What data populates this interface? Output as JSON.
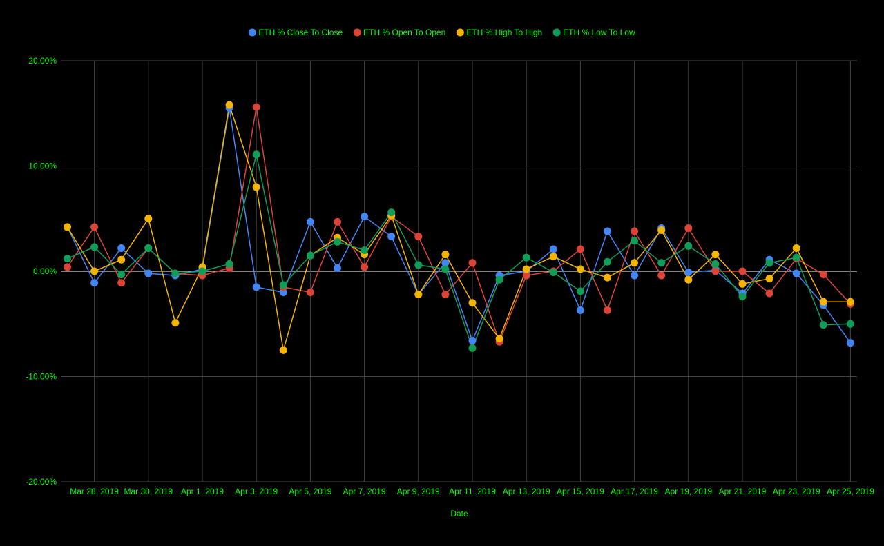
{
  "colors": {
    "background": "#000000",
    "grid": "#444444",
    "zero_line": "#ffffff",
    "text": "#00ff00"
  },
  "chart_data": {
    "type": "line",
    "title": "",
    "xlabel": "Date",
    "ylabel": "",
    "ylim": [
      -0.2,
      0.2
    ],
    "y_ticks": [
      {
        "value": 0.2,
        "label": "20.00%"
      },
      {
        "value": 0.1,
        "label": "10.00%"
      },
      {
        "value": 0.0,
        "label": "0.00%"
      },
      {
        "value": -0.1,
        "label": "-10.00%"
      },
      {
        "value": -0.2,
        "label": "-20.00%"
      }
    ],
    "x": [
      "Mar 27, 2019",
      "Mar 28, 2019",
      "Mar 29, 2019",
      "Mar 30, 2019",
      "Mar 31, 2019",
      "Apr 1, 2019",
      "Apr 2, 2019",
      "Apr 3, 2019",
      "Apr 4, 2019",
      "Apr 5, 2019",
      "Apr 6, 2019",
      "Apr 7, 2019",
      "Apr 8, 2019",
      "Apr 9, 2019",
      "Apr 10, 2019",
      "Apr 11, 2019",
      "Apr 12, 2019",
      "Apr 13, 2019",
      "Apr 14, 2019",
      "Apr 15, 2019",
      "Apr 16, 2019",
      "Apr 17, 2019",
      "Apr 18, 2019",
      "Apr 19, 2019",
      "Apr 20, 2019",
      "Apr 21, 2019",
      "Apr 22, 2019",
      "Apr 23, 2019",
      "Apr 24, 2019",
      "Apr 25, 2019"
    ],
    "x_tick_labels": [
      "Mar 28, 2019",
      "Mar 30, 2019",
      "Apr 1, 2019",
      "Apr 3, 2019",
      "Apr 5, 2019",
      "Apr 7, 2019",
      "Apr 9, 2019",
      "Apr 11, 2019",
      "Apr 13, 2019",
      "Apr 15, 2019",
      "Apr 17, 2019",
      "Apr 19, 2019",
      "Apr 21, 2019",
      "Apr 23, 2019",
      "Apr 25, 2019"
    ],
    "legend_position": "top",
    "grid": true,
    "series": [
      {
        "name": "ETH % Close To Close",
        "color": "#4285f4",
        "values": [
          0.042,
          -0.011,
          0.022,
          -0.002,
          -0.004,
          0.002,
          0.155,
          -0.015,
          -0.02,
          0.047,
          0.003,
          0.052,
          0.033,
          -0.022,
          0.008,
          -0.066,
          -0.004,
          0.0,
          0.021,
          -0.037,
          0.038,
          -0.004,
          0.041,
          -0.001,
          0.001,
          -0.021,
          0.011,
          -0.002,
          -0.032,
          -0.068
        ]
      },
      {
        "name": "ETH % Open To Open",
        "color": "#db4437",
        "values": [
          0.004,
          0.042,
          -0.011,
          0.022,
          -0.002,
          -0.004,
          0.003,
          0.156,
          -0.015,
          -0.02,
          0.047,
          0.004,
          0.052,
          0.033,
          -0.022,
          0.008,
          -0.067,
          -0.004,
          0.0,
          0.021,
          -0.037,
          0.038,
          -0.004,
          0.041,
          0.0,
          0.0,
          -0.021,
          0.012,
          -0.003,
          -0.031
        ]
      },
      {
        "name": "ETH % High To High",
        "color": "#f4b400",
        "values": [
          0.042,
          0.0,
          0.011,
          0.05,
          -0.049,
          0.004,
          0.158,
          0.08,
          -0.075,
          0.015,
          0.032,
          0.016,
          0.053,
          -0.022,
          0.016,
          -0.03,
          -0.064,
          0.002,
          0.014,
          0.002,
          -0.006,
          0.008,
          0.039,
          -0.008,
          0.016,
          -0.012,
          -0.007,
          0.022,
          -0.029,
          -0.029
        ]
      },
      {
        "name": "ETH % Low To Low",
        "color": "#0f9d58",
        "values": [
          0.012,
          0.023,
          -0.003,
          0.022,
          -0.002,
          0.0,
          0.007,
          0.111,
          -0.013,
          0.015,
          0.028,
          0.02,
          0.056,
          0.006,
          0.002,
          -0.073,
          -0.008,
          0.013,
          -0.001,
          -0.019,
          0.009,
          0.029,
          0.008,
          0.024,
          0.007,
          -0.024,
          0.008,
          0.013,
          -0.051,
          -0.05
        ]
      }
    ]
  }
}
